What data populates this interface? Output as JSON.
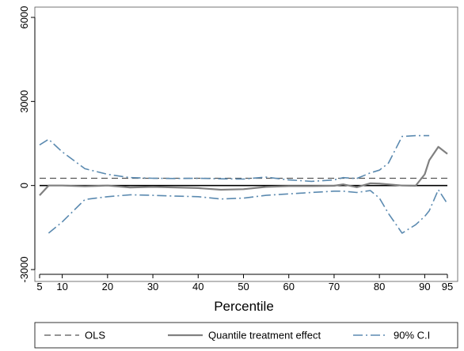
{
  "chart_data": {
    "type": "line",
    "title": "",
    "xlabel": "Percentile",
    "ylabel": "",
    "xlim": [
      5,
      95
    ],
    "ylim": [
      -3000,
      6000
    ],
    "grid": false,
    "legend_position": "bottom",
    "x_ticks": [
      {
        "value": 5,
        "label": "5"
      },
      {
        "value": 10,
        "label": "10"
      },
      {
        "value": 20,
        "label": "20"
      },
      {
        "value": 30,
        "label": "30"
      },
      {
        "value": 40,
        "label": "40"
      },
      {
        "value": 50,
        "label": "50"
      },
      {
        "value": 60,
        "label": "60"
      },
      {
        "value": 70,
        "label": "70"
      },
      {
        "value": 80,
        "label": "80"
      },
      {
        "value": 90,
        "label": "90"
      },
      {
        "value": 95,
        "label": "95"
      }
    ],
    "y_ticks": [
      {
        "value": -3000,
        "label": "-3000"
      },
      {
        "value": 0,
        "label": "0"
      },
      {
        "value": 3000,
        "label": "3000"
      },
      {
        "value": 6000,
        "label": "6000"
      }
    ],
    "reference_line": {
      "y": 0,
      "color": "#000000"
    },
    "series": [
      {
        "name": "OLS",
        "style": "dashed",
        "color": "#555555",
        "x": [
          5,
          95
        ],
        "y": [
          260,
          260
        ]
      },
      {
        "name": "Quantile treatment effect",
        "style": "solid",
        "color": "#808080",
        "x": [
          5,
          7,
          10,
          15,
          20,
          25,
          30,
          35,
          40,
          45,
          50,
          55,
          60,
          65,
          70,
          72,
          75,
          78,
          80,
          85,
          88,
          90,
          91,
          93,
          95
        ],
        "y": [
          -350,
          0,
          0,
          -30,
          0,
          -70,
          -50,
          -70,
          -90,
          -150,
          -130,
          -50,
          -20,
          -20,
          -10,
          40,
          -60,
          80,
          70,
          0,
          -10,
          400,
          900,
          1380,
          1130
        ]
      },
      {
        "name": "90% C.I",
        "style": "dashdot",
        "color": "#5b8ab0",
        "x": [
          5,
          7,
          10,
          15,
          20,
          25,
          30,
          35,
          40,
          45,
          50,
          55,
          60,
          65,
          70,
          72,
          75,
          78,
          80,
          82,
          85,
          88,
          90,
          91
        ],
        "y": [
          1450,
          1650,
          1200,
          600,
          400,
          280,
          260,
          250,
          260,
          240,
          230,
          300,
          200,
          150,
          200,
          280,
          250,
          450,
          550,
          800,
          1750,
          1780,
          1780,
          1780
        ]
      },
      {
        "name": "90% C.I",
        "style": "dashdot",
        "color": "#5b8ab0",
        "x": [
          7,
          10,
          15,
          20,
          25,
          30,
          35,
          40,
          45,
          50,
          55,
          60,
          65,
          70,
          72,
          75,
          78,
          80,
          82,
          85,
          88,
          90,
          91,
          93,
          95
        ],
        "y": [
          -1700,
          -1300,
          -500,
          -400,
          -330,
          -350,
          -380,
          -400,
          -480,
          -450,
          -350,
          -300,
          -250,
          -200,
          -200,
          -250,
          -180,
          -450,
          -1000,
          -1700,
          -1400,
          -1100,
          -900,
          -150,
          -650
        ]
      }
    ],
    "legend": [
      {
        "label": "OLS",
        "style": "dashed",
        "color": "#555555"
      },
      {
        "label": "Quantile treatment effect",
        "style": "solid",
        "color": "#808080"
      },
      {
        "label": "90% C.I",
        "style": "dashdot",
        "color": "#5b8ab0"
      }
    ]
  }
}
